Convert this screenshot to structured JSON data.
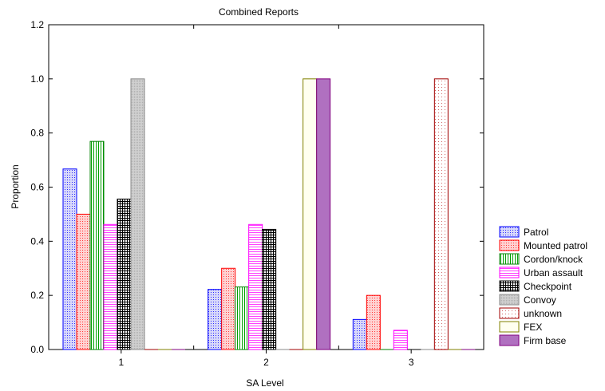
{
  "chart_data": {
    "type": "bar",
    "title": "Combined Reports",
    "xlabel": "SA Level",
    "ylabel": "Proportion",
    "categories": [
      "1",
      "2",
      "3"
    ],
    "ylim": [
      0,
      1.2
    ],
    "yticks": [
      "0.0",
      "0.2",
      "0.4",
      "0.6",
      "0.8",
      "1.0",
      "1.2"
    ],
    "legend_position": "right-bottom",
    "series": [
      {
        "name": "Patrol",
        "values": [
          0.667,
          0.222,
          0.111
        ],
        "color": "#0000ff",
        "fill": "#c7c7f7",
        "pattern": "dots"
      },
      {
        "name": "Mounted patrol",
        "values": [
          0.5,
          0.3,
          0.2
        ],
        "color": "#ff0000",
        "fill": "#ffc8c8",
        "pattern": "dots"
      },
      {
        "name": "Cordon/knock",
        "values": [
          0.769,
          0.231,
          0.0
        ],
        "color": "#008000",
        "fill": "#ffffff",
        "pattern": "vlines"
      },
      {
        "name": "Urban assault",
        "values": [
          0.462,
          0.462,
          0.071
        ],
        "color": "#ff00ff",
        "fill": "#ffffff",
        "pattern": "hlines"
      },
      {
        "name": "Checkpoint",
        "values": [
          0.556,
          0.444,
          0.0
        ],
        "color": "#000000",
        "fill": "#ffffff",
        "pattern": "grid"
      },
      {
        "name": "Convoy",
        "values": [
          1.0,
          0.0,
          0.0
        ],
        "color": "#888888",
        "fill": "#c8c8c8",
        "pattern": "fine"
      },
      {
        "name": "unknown",
        "values": [
          0.0,
          0.0,
          1.0
        ],
        "color": "#a00000",
        "fill": "#fff4f4",
        "pattern": "sparse"
      },
      {
        "name": "FEX",
        "values": [
          0.0,
          1.0,
          0.0
        ],
        "color": "#808000",
        "fill": "#fffff0",
        "pattern": "none"
      },
      {
        "name": "Firm base",
        "values": [
          0.0,
          1.0,
          0.0
        ],
        "color": "#800080",
        "fill": "#b070c0",
        "pattern": "none"
      }
    ]
  }
}
